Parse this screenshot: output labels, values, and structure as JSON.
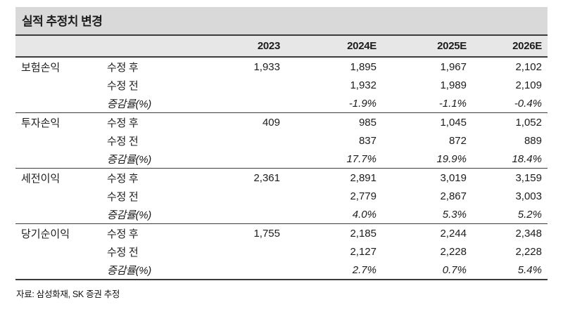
{
  "title": "실적 추정치 변경",
  "footer": "자료: 삼성화재, SK 증권 추정",
  "colors": {
    "title_bg": "#d9d9d9",
    "header_bg": "#e7e7e7",
    "rule_line": "#3c3c3c",
    "text": "#1c1c1c"
  },
  "chart_data": {
    "type": "table",
    "title": "실적 추정치 변경",
    "columns": [
      "",
      "",
      "2023",
      "2024E",
      "2025E",
      "2026E"
    ],
    "groups": [
      {
        "name": "보험손익",
        "rows": [
          {
            "label": "수정 후",
            "italic": false,
            "values": [
              "1,933",
              "1,895",
              "1,967",
              "2,102"
            ]
          },
          {
            "label": "수정 전",
            "italic": false,
            "values": [
              "",
              "1,932",
              "1,989",
              "2,109"
            ]
          },
          {
            "label": "증감률(%)",
            "italic": true,
            "values": [
              "",
              "-1.9%",
              "-1.1%",
              "-0.4%"
            ]
          }
        ]
      },
      {
        "name": "투자손익",
        "rows": [
          {
            "label": "수정 후",
            "italic": false,
            "values": [
              "409",
              "985",
              "1,045",
              "1,052"
            ]
          },
          {
            "label": "수정 전",
            "italic": false,
            "values": [
              "",
              "837",
              "872",
              "889"
            ]
          },
          {
            "label": "증감률(%)",
            "italic": true,
            "values": [
              "",
              "17.7%",
              "19.9%",
              "18.4%"
            ]
          }
        ]
      },
      {
        "name": "세전이익",
        "rows": [
          {
            "label": "수정 후",
            "italic": false,
            "values": [
              "2,361",
              "2,891",
              "3,019",
              "3,159"
            ]
          },
          {
            "label": "수정 전",
            "italic": false,
            "values": [
              "",
              "2,779",
              "2,867",
              "3,003"
            ]
          },
          {
            "label": "증감률(%)",
            "italic": true,
            "values": [
              "",
              "4.0%",
              "5.3%",
              "5.2%"
            ]
          }
        ]
      },
      {
        "name": "당기순이익",
        "rows": [
          {
            "label": "수정 후",
            "italic": false,
            "values": [
              "1,755",
              "2,185",
              "2,244",
              "2,348"
            ]
          },
          {
            "label": "수정 전",
            "italic": false,
            "values": [
              "",
              "2,127",
              "2,228",
              "2,228"
            ]
          },
          {
            "label": "증감률(%)",
            "italic": true,
            "values": [
              "",
              "2.7%",
              "0.7%",
              "5.4%"
            ]
          }
        ]
      }
    ]
  }
}
